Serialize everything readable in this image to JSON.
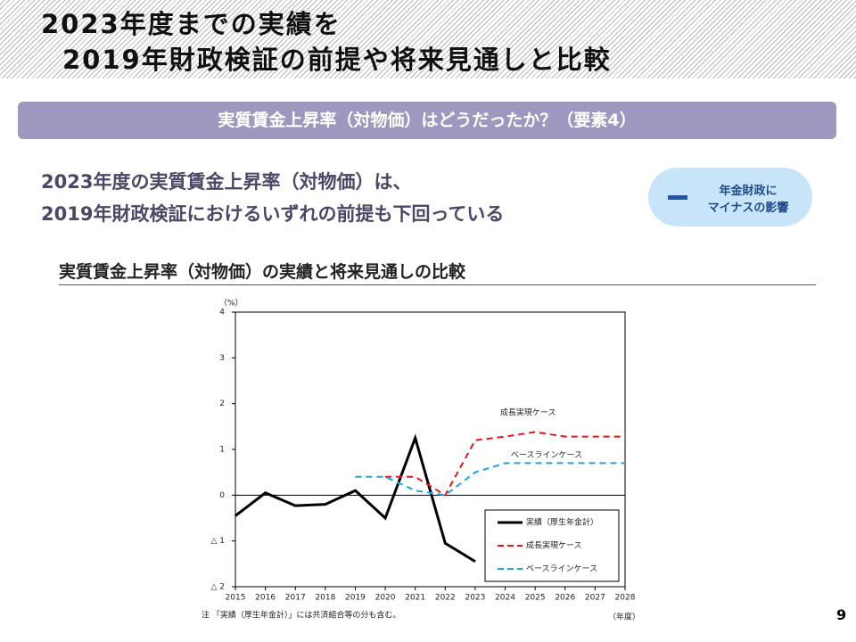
{
  "header": {
    "title_lines": [
      "2023年度までの実績を",
      "2019年財政検証の前提や将来見通しと比較"
    ]
  },
  "banner": "実質賃金上昇率（対物価）はどうだったか？（要素4）",
  "summary_lines": [
    "2023年度の実質賃金上昇率（対物価）は、",
    "2019年財政検証におけるいずれの前提も下回っている"
  ],
  "badge_lines": [
    "年金財政に",
    "マイナスの影響"
  ],
  "section_title": "実質賃金上昇率（対物価）の実績と将来見通しの比較",
  "chart_data": {
    "type": "line",
    "y_unit_label": "（%）",
    "x_unit_label": "（年度）",
    "x": [
      2015,
      2016,
      2017,
      2018,
      2019,
      2020,
      2021,
      2022,
      2023,
      2024,
      2025,
      2026,
      2027,
      2028
    ],
    "xlim": [
      2015,
      2028
    ],
    "xticks": [
      2015,
      2016,
      2017,
      2018,
      2019,
      2020,
      2021,
      2022,
      2023,
      2024,
      2025,
      2026,
      2027,
      2028
    ],
    "ylim": [
      -2,
      4
    ],
    "yticks": [
      {
        "value": -2,
        "label": "△ 2"
      },
      {
        "value": -1,
        "label": "△ 1"
      },
      0,
      1,
      2,
      3,
      4
    ],
    "series": [
      {
        "name": "実績（厚生年金計）",
        "color": "#000000",
        "dashed": false,
        "values": [
          -0.45,
          0.05,
          -0.23,
          -0.2,
          0.1,
          -0.5,
          1.25,
          -1.05,
          -1.45,
          null,
          null,
          null,
          null,
          null
        ]
      },
      {
        "name": "成長実現ケース",
        "color": "#e8141c",
        "dashed": true,
        "values": [
          null,
          null,
          null,
          null,
          null,
          0.4,
          0.4,
          0.0,
          1.2,
          1.28,
          1.38,
          1.28,
          1.28,
          1.28
        ]
      },
      {
        "name": "ベースラインケース",
        "color": "#1ea6dc",
        "dashed": true,
        "values": [
          null,
          null,
          null,
          null,
          0.4,
          0.4,
          0.1,
          0.0,
          0.5,
          0.7,
          0.7,
          0.7,
          0.7,
          0.7
        ]
      }
    ],
    "annotations": [
      "成長実現ケース",
      "ベースラインケース"
    ],
    "legend": "bottom-right"
  },
  "note": "注 「実績（厚生年金計）」には共済組合等の分も含む。",
  "page_number": "9"
}
